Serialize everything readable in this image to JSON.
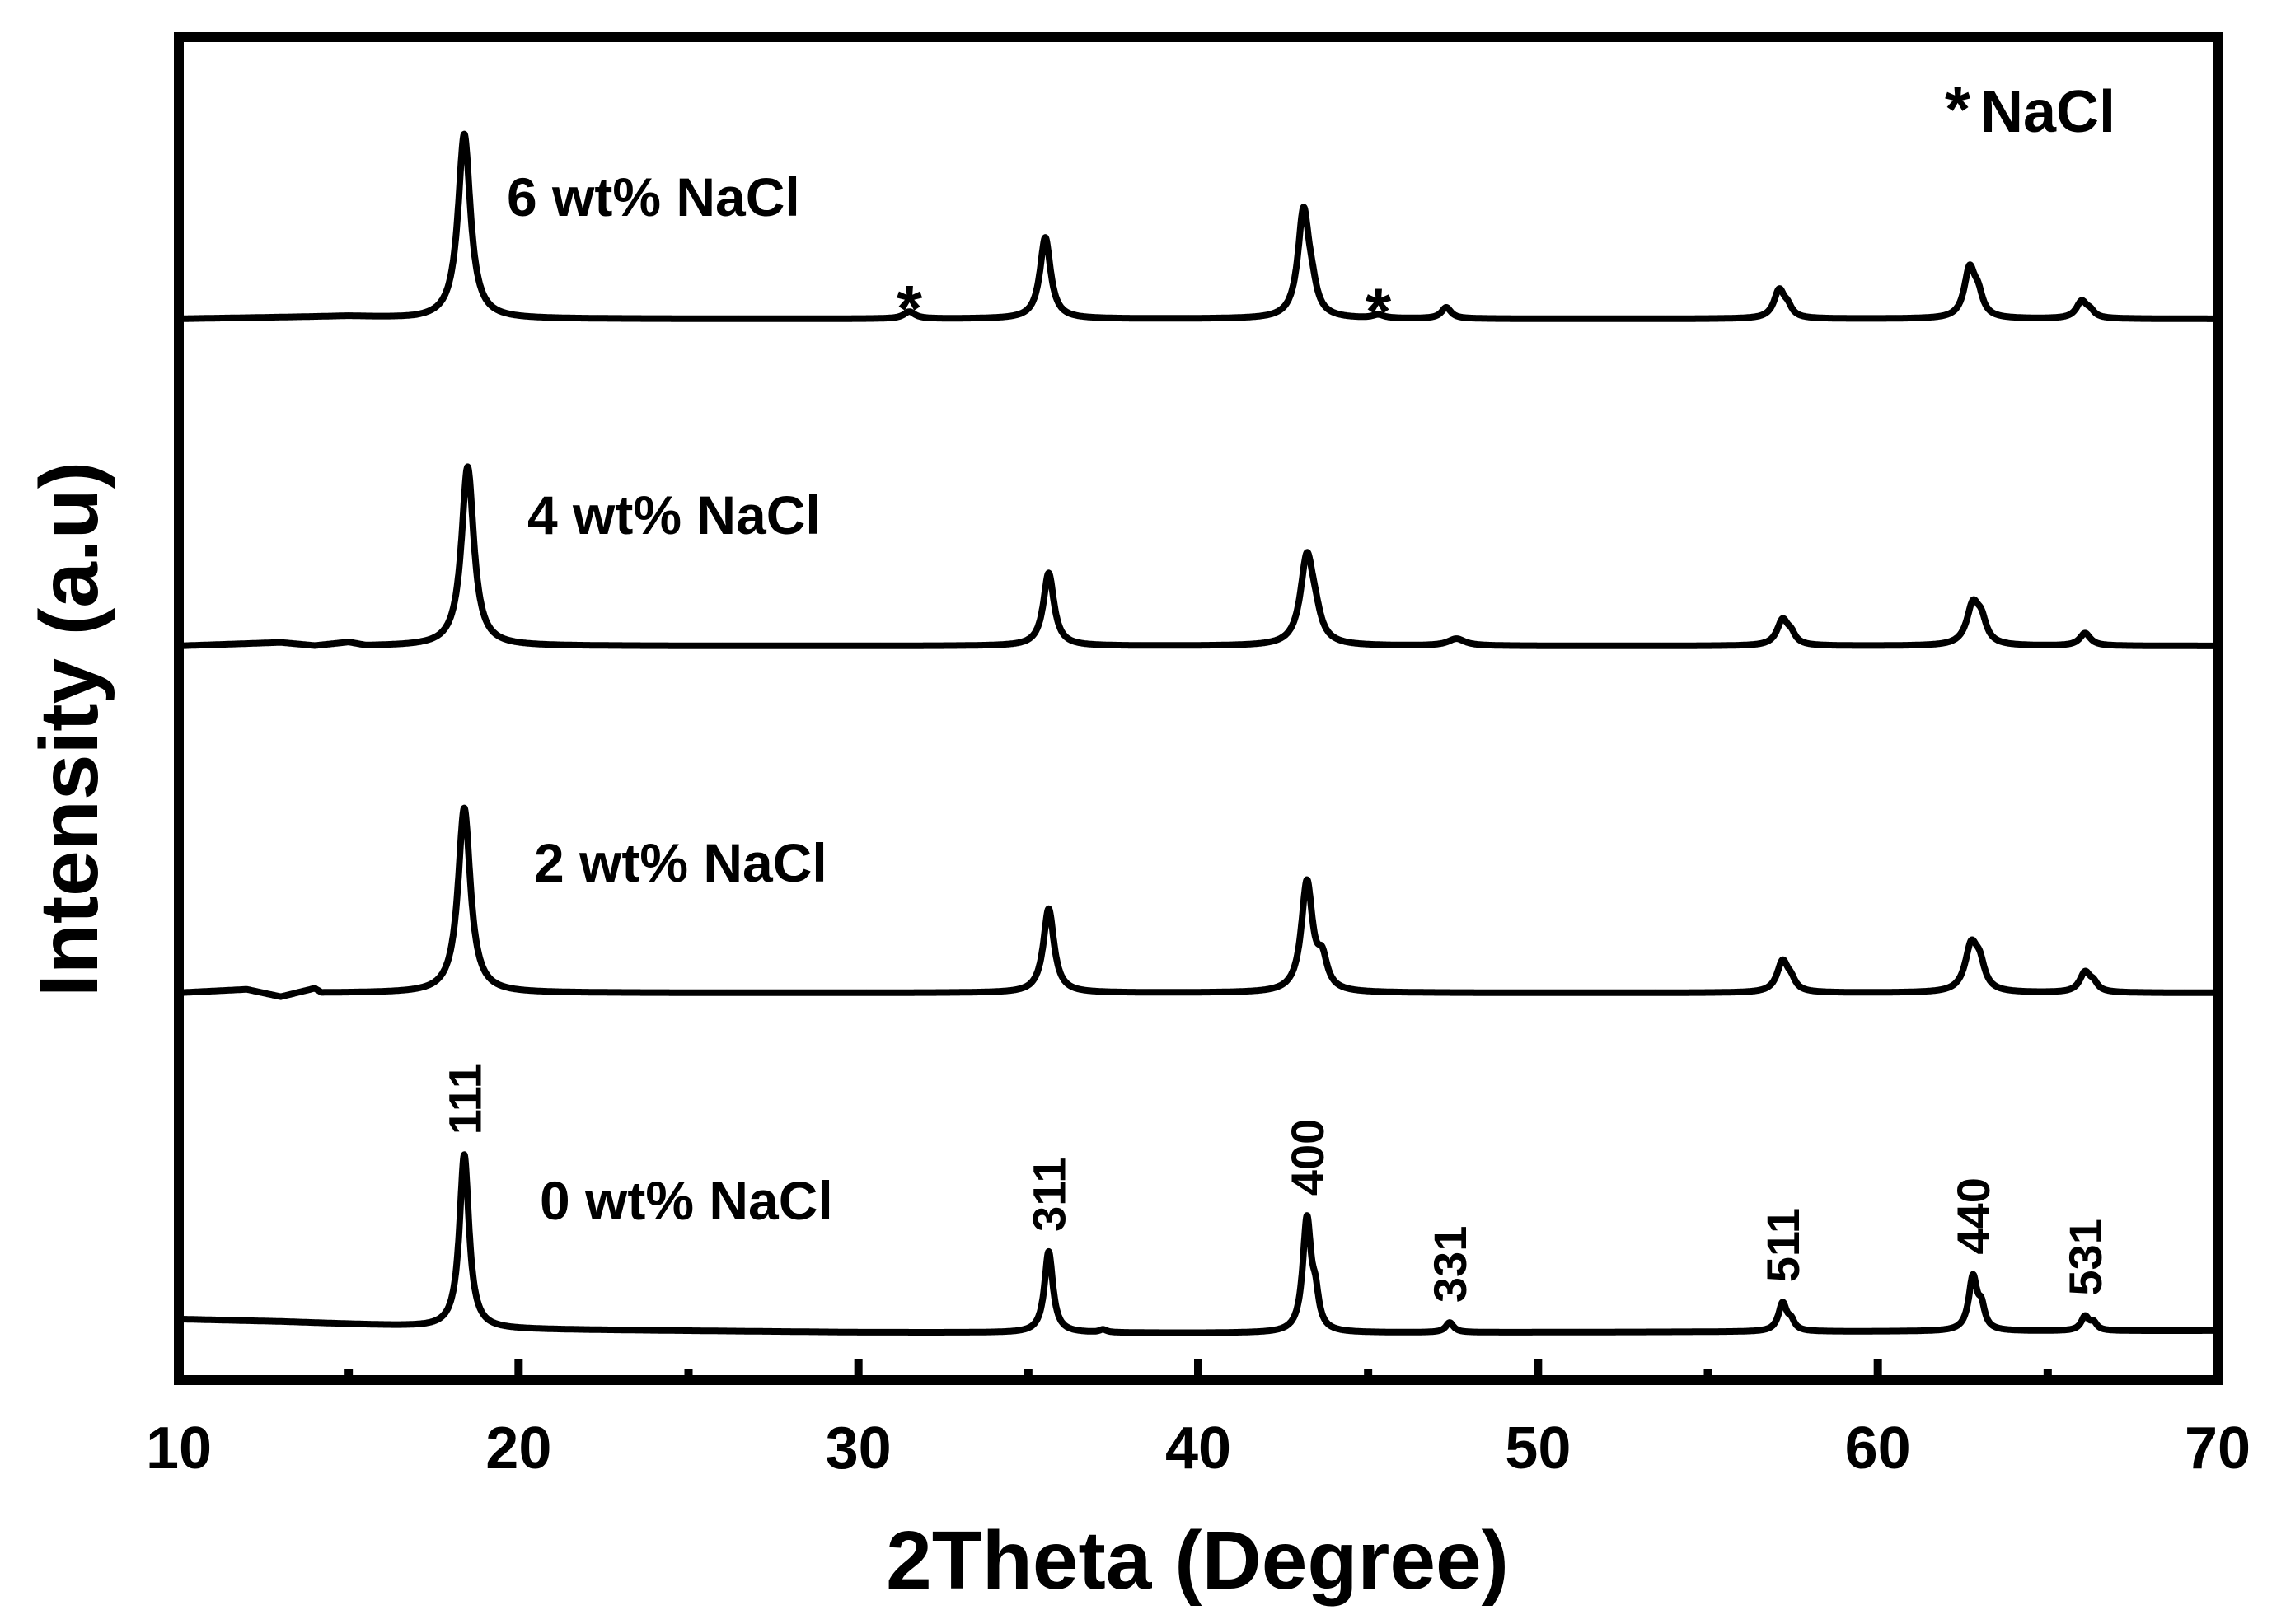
{
  "chart_data": {
    "type": "line",
    "xlabel": "2Theta (Degree)",
    "ylabel": "Intensity (a.u)",
    "xlim": [
      10,
      70
    ],
    "x_ticks_major": [
      10,
      20,
      30,
      40,
      50,
      60,
      70
    ],
    "x_ticks_minor": [
      15,
      25,
      35,
      45,
      55,
      65
    ],
    "y_ticks": "none",
    "grid": false,
    "legend": {
      "marker": "*",
      "text": "NaCl",
      "placement": "top-right"
    },
    "series": [
      {
        "name": "0 wt% NaCl",
        "peaks": [
          {
            "x": 18.4,
            "height": 0.62,
            "width": 0.17
          },
          {
            "x": 35.6,
            "height": 0.29,
            "width": 0.15
          },
          {
            "x": 37.2,
            "height": 0.01,
            "width": 0.12
          },
          {
            "x": 43.2,
            "height": 0.4,
            "width": 0.15
          },
          {
            "x": 43.45,
            "height": 0.1,
            "width": 0.12
          },
          {
            "x": 47.4,
            "height": 0.035,
            "width": 0.14
          },
          {
            "x": 57.2,
            "height": 0.1,
            "width": 0.15
          },
          {
            "x": 57.45,
            "height": 0.03,
            "width": 0.12
          },
          {
            "x": 62.8,
            "height": 0.19,
            "width": 0.15
          },
          {
            "x": 63.05,
            "height": 0.07,
            "width": 0.12
          },
          {
            "x": 66.1,
            "height": 0.05,
            "width": 0.14
          },
          {
            "x": 66.35,
            "height": 0.025,
            "width": 0.12
          }
        ]
      },
      {
        "name": "2 wt% NaCl",
        "peaks": [
          {
            "x": 18.4,
            "height": 0.66,
            "width": 0.22
          },
          {
            "x": 35.6,
            "height": 0.3,
            "width": 0.19
          },
          {
            "x": 43.2,
            "height": 0.39,
            "width": 0.2
          },
          {
            "x": 43.65,
            "height": 0.1,
            "width": 0.18
          },
          {
            "x": 57.2,
            "height": 0.11,
            "width": 0.2
          },
          {
            "x": 57.45,
            "height": 0.03,
            "width": 0.15
          },
          {
            "x": 62.75,
            "height": 0.16,
            "width": 0.22
          },
          {
            "x": 63.0,
            "height": 0.08,
            "width": 0.18
          },
          {
            "x": 66.1,
            "height": 0.07,
            "width": 0.19
          },
          {
            "x": 66.35,
            "height": 0.025,
            "width": 0.15
          }
        ]
      },
      {
        "name": "4 wt% NaCl",
        "peaks": [
          {
            "x": 18.5,
            "height": 0.64,
            "width": 0.22
          },
          {
            "x": 35.6,
            "height": 0.26,
            "width": 0.19
          },
          {
            "x": 43.2,
            "height": 0.31,
            "width": 0.23
          },
          {
            "x": 43.45,
            "height": 0.06,
            "width": 0.2
          },
          {
            "x": 47.6,
            "height": 0.025,
            "width": 0.3
          },
          {
            "x": 57.2,
            "height": 0.09,
            "width": 0.2
          },
          {
            "x": 57.45,
            "height": 0.03,
            "width": 0.15
          },
          {
            "x": 62.8,
            "height": 0.14,
            "width": 0.22
          },
          {
            "x": 63.05,
            "height": 0.07,
            "width": 0.18
          },
          {
            "x": 66.1,
            "height": 0.045,
            "width": 0.19
          }
        ]
      },
      {
        "name": "6 wt% NaCl",
        "peaks": [
          {
            "x": 18.4,
            "height": 0.66,
            "width": 0.22
          },
          {
            "x": 31.5,
            "height": 0.025,
            "width": 0.2
          },
          {
            "x": 35.5,
            "height": 0.29,
            "width": 0.19
          },
          {
            "x": 43.1,
            "height": 0.38,
            "width": 0.2
          },
          {
            "x": 43.35,
            "height": 0.06,
            "width": 0.17
          },
          {
            "x": 45.3,
            "height": 0.012,
            "width": 0.2
          },
          {
            "x": 47.3,
            "height": 0.04,
            "width": 0.17
          },
          {
            "x": 57.1,
            "height": 0.1,
            "width": 0.19
          },
          {
            "x": 57.35,
            "height": 0.03,
            "width": 0.15
          },
          {
            "x": 62.7,
            "height": 0.17,
            "width": 0.19
          },
          {
            "x": 62.95,
            "height": 0.07,
            "width": 0.17
          },
          {
            "x": 66.0,
            "height": 0.06,
            "width": 0.19
          },
          {
            "x": 66.25,
            "height": 0.02,
            "width": 0.15
          }
        ]
      }
    ],
    "peak_labels": [
      {
        "text": "111",
        "x": 18.4
      },
      {
        "text": "311",
        "x": 35.6
      },
      {
        "text": "400",
        "x": 43.2
      },
      {
        "text": "331",
        "x": 47.4
      },
      {
        "text": "511",
        "x": 57.2
      },
      {
        "text": "440",
        "x": 62.8
      },
      {
        "text": "531",
        "x": 66.1
      }
    ],
    "nacl_markers": [
      {
        "text": "*",
        "x": 31.5
      },
      {
        "text": "*",
        "x": 45.3
      }
    ]
  }
}
